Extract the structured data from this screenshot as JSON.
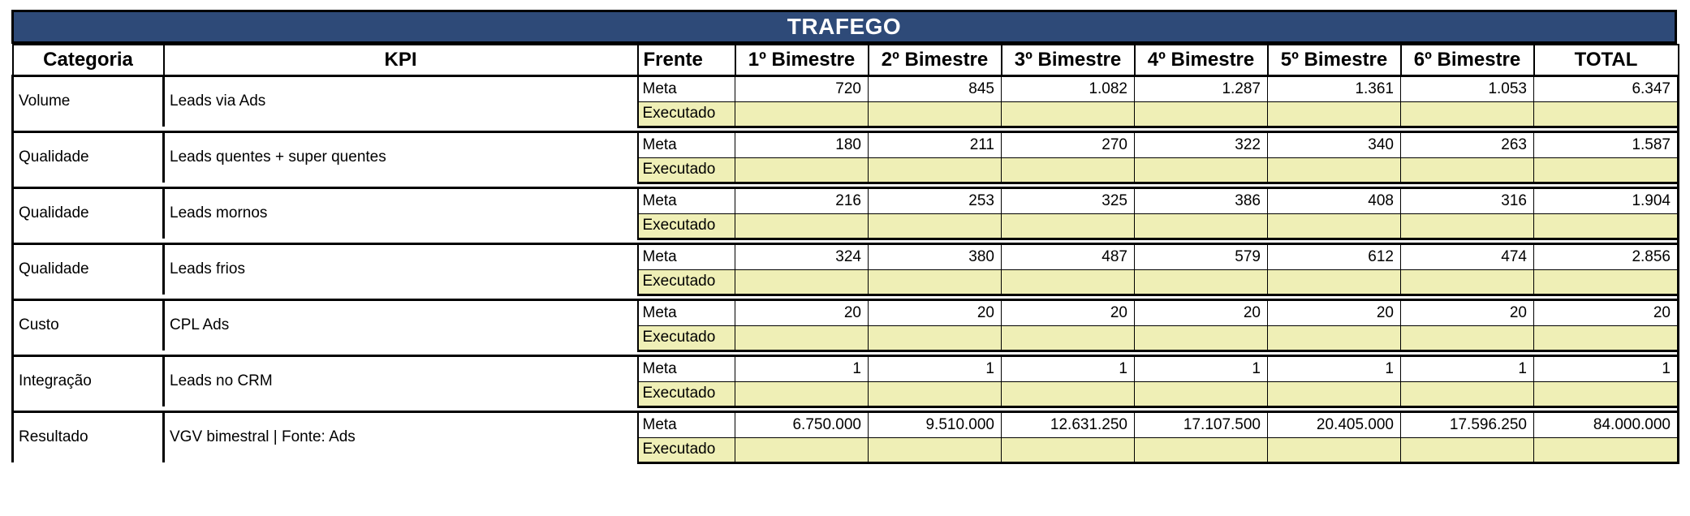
{
  "sheet": {
    "title": "TRAFEGO",
    "headers": [
      "Categoria",
      "KPI",
      "Frente",
      "1º Bimestre",
      "2º Bimestre",
      "3º Bimestre",
      "4º Bimestre",
      "5º Bimestre",
      "6º Bimestre",
      "TOTAL"
    ],
    "colors": {
      "title_bg": "#2E4A78",
      "executado_bg": "#EFEFB6"
    },
    "rows": [
      {
        "categoria": "Volume",
        "kpi": "Leads via Ads",
        "meta_label": "Meta",
        "exec_label": "Executado",
        "meta": [
          "720",
          "845",
          "1.082",
          "1.287",
          "1.361",
          "1.053",
          "6.347"
        ]
      },
      {
        "categoria": "Qualidade",
        "kpi": "Leads quentes + super quentes",
        "meta_label": "Meta",
        "exec_label": "Executado",
        "meta": [
          "180",
          "211",
          "270",
          "322",
          "340",
          "263",
          "1.587"
        ]
      },
      {
        "categoria": "Qualidade",
        "kpi": "Leads mornos",
        "meta_label": "Meta",
        "exec_label": "Executado",
        "meta": [
          "216",
          "253",
          "325",
          "386",
          "408",
          "316",
          "1.904"
        ]
      },
      {
        "categoria": "Qualidade",
        "kpi": "Leads frios",
        "meta_label": "Meta",
        "exec_label": "Executado",
        "meta": [
          "324",
          "380",
          "487",
          "579",
          "612",
          "474",
          "2.856"
        ]
      },
      {
        "categoria": "Custo",
        "kpi": "CPL Ads",
        "meta_label": "Meta",
        "exec_label": "Executado",
        "meta": [
          "20",
          "20",
          "20",
          "20",
          "20",
          "20",
          "20"
        ]
      },
      {
        "categoria": "Integração",
        "kpi": "Leads no CRM",
        "meta_label": "Meta",
        "exec_label": "Executado",
        "meta": [
          "1",
          "1",
          "1",
          "1",
          "1",
          "1",
          "1"
        ]
      },
      {
        "categoria": "Resultado",
        "kpi": "VGV bimestral | Fonte: Ads",
        "meta_label": "Meta",
        "exec_label": "Executado",
        "meta": [
          "6.750.000",
          "9.510.000",
          "12.631.250",
          "17.107.500",
          "20.405.000",
          "17.596.250",
          "84.000.000"
        ]
      }
    ]
  }
}
